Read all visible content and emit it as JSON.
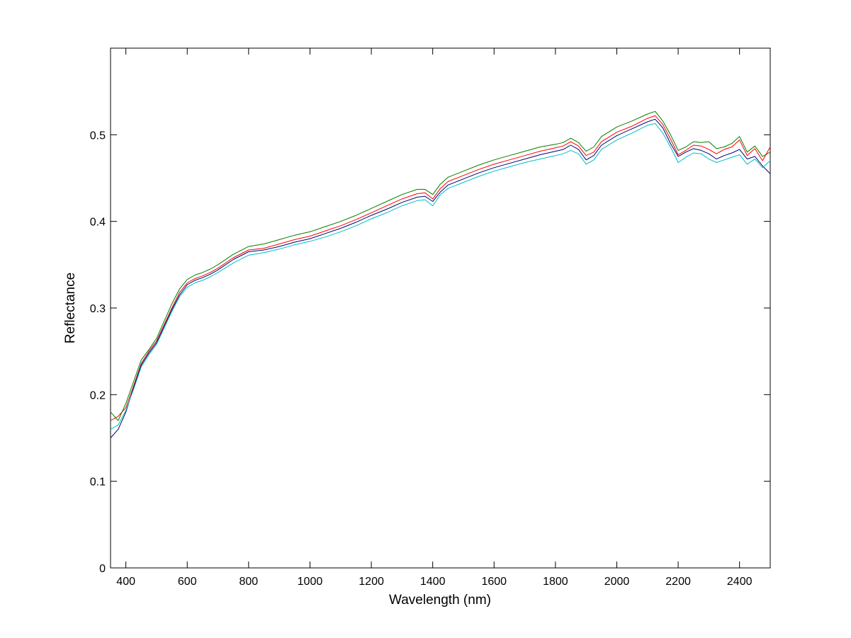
{
  "chart_data": {
    "type": "line",
    "title": "",
    "xlabel": "Wavelength (nm)",
    "ylabel": "Reflectance",
    "xlim": [
      350,
      2500
    ],
    "ylim": [
      0,
      0.6
    ],
    "x_ticks": [
      400,
      600,
      800,
      1000,
      1200,
      1400,
      1600,
      1800,
      2000,
      2200,
      2400
    ],
    "x_tick_labels": [
      "400",
      "600",
      "800",
      "1000",
      "1200",
      "1400",
      "1600",
      "1800",
      "2000",
      "2200",
      "2400"
    ],
    "y_ticks": [
      0,
      0.1,
      0.2,
      0.3,
      0.4,
      0.5
    ],
    "y_tick_labels": [
      "0",
      "0.1",
      "0.2",
      "0.3",
      "0.4",
      "0.5"
    ],
    "grid": false,
    "legend": "none",
    "x": [
      350,
      375,
      400,
      425,
      450,
      475,
      500,
      525,
      550,
      575,
      600,
      625,
      650,
      675,
      700,
      750,
      800,
      850,
      900,
      950,
      1000,
      1050,
      1100,
      1150,
      1200,
      1250,
      1300,
      1350,
      1375,
      1400,
      1425,
      1450,
      1500,
      1550,
      1600,
      1650,
      1700,
      1750,
      1800,
      1825,
      1850,
      1875,
      1900,
      1925,
      1950,
      2000,
      2050,
      2100,
      2125,
      2150,
      2175,
      2200,
      2225,
      2250,
      2275,
      2300,
      2325,
      2350,
      2375,
      2400,
      2425,
      2450,
      2475,
      2500
    ],
    "series": [
      {
        "color": "#007f00",
        "values": [
          0.18,
          0.17,
          0.19,
          0.215,
          0.24,
          0.252,
          0.265,
          0.285,
          0.305,
          0.322,
          0.333,
          0.338,
          0.341,
          0.345,
          0.35,
          0.362,
          0.371,
          0.374,
          0.379,
          0.384,
          0.388,
          0.394,
          0.4,
          0.407,
          0.415,
          0.423,
          0.431,
          0.437,
          0.437,
          0.431,
          0.443,
          0.451,
          0.458,
          0.465,
          0.471,
          0.476,
          0.481,
          0.486,
          0.489,
          0.491,
          0.496,
          0.491,
          0.481,
          0.486,
          0.498,
          0.509,
          0.516,
          0.524,
          0.527,
          0.516,
          0.5,
          0.482,
          0.486,
          0.492,
          0.491,
          0.492,
          0.484,
          0.486,
          0.49,
          0.498,
          0.48,
          0.487,
          0.475,
          0.48
        ]
      },
      {
        "color": "#ff0000",
        "values": [
          0.17,
          0.175,
          0.185,
          0.21,
          0.236,
          0.25,
          0.262,
          0.281,
          0.3,
          0.318,
          0.329,
          0.334,
          0.337,
          0.341,
          0.346,
          0.358,
          0.367,
          0.369,
          0.374,
          0.379,
          0.383,
          0.389,
          0.395,
          0.402,
          0.41,
          0.418,
          0.426,
          0.432,
          0.433,
          0.426,
          0.438,
          0.446,
          0.453,
          0.46,
          0.466,
          0.471,
          0.476,
          0.481,
          0.485,
          0.487,
          0.492,
          0.487,
          0.476,
          0.48,
          0.492,
          0.503,
          0.51,
          0.519,
          0.522,
          0.512,
          0.495,
          0.477,
          0.482,
          0.488,
          0.487,
          0.483,
          0.478,
          0.483,
          0.486,
          0.494,
          0.476,
          0.484,
          0.47,
          0.486
        ]
      },
      {
        "color": "#00007f",
        "values": [
          0.15,
          0.16,
          0.18,
          0.208,
          0.234,
          0.248,
          0.26,
          0.279,
          0.298,
          0.315,
          0.327,
          0.332,
          0.335,
          0.339,
          0.344,
          0.356,
          0.365,
          0.367,
          0.371,
          0.376,
          0.38,
          0.386,
          0.392,
          0.399,
          0.407,
          0.414,
          0.422,
          0.428,
          0.429,
          0.423,
          0.434,
          0.442,
          0.449,
          0.456,
          0.462,
          0.467,
          0.472,
          0.477,
          0.481,
          0.483,
          0.488,
          0.483,
          0.471,
          0.476,
          0.488,
          0.499,
          0.507,
          0.515,
          0.518,
          0.508,
          0.49,
          0.475,
          0.48,
          0.484,
          0.482,
          0.478,
          0.472,
          0.476,
          0.479,
          0.483,
          0.472,
          0.475,
          0.464,
          0.455
        ]
      },
      {
        "color": "#00bfbf",
        "values": [
          0.16,
          0.165,
          0.182,
          0.206,
          0.232,
          0.246,
          0.258,
          0.277,
          0.296,
          0.313,
          0.324,
          0.329,
          0.332,
          0.336,
          0.341,
          0.352,
          0.361,
          0.364,
          0.368,
          0.373,
          0.377,
          0.382,
          0.388,
          0.395,
          0.403,
          0.41,
          0.418,
          0.424,
          0.425,
          0.418,
          0.431,
          0.438,
          0.445,
          0.452,
          0.458,
          0.463,
          0.468,
          0.472,
          0.476,
          0.478,
          0.482,
          0.478,
          0.466,
          0.471,
          0.483,
          0.494,
          0.502,
          0.511,
          0.513,
          0.502,
          0.486,
          0.468,
          0.474,
          0.479,
          0.478,
          0.472,
          0.468,
          0.471,
          0.474,
          0.477,
          0.466,
          0.472,
          0.462,
          0.47
        ]
      }
    ]
  }
}
